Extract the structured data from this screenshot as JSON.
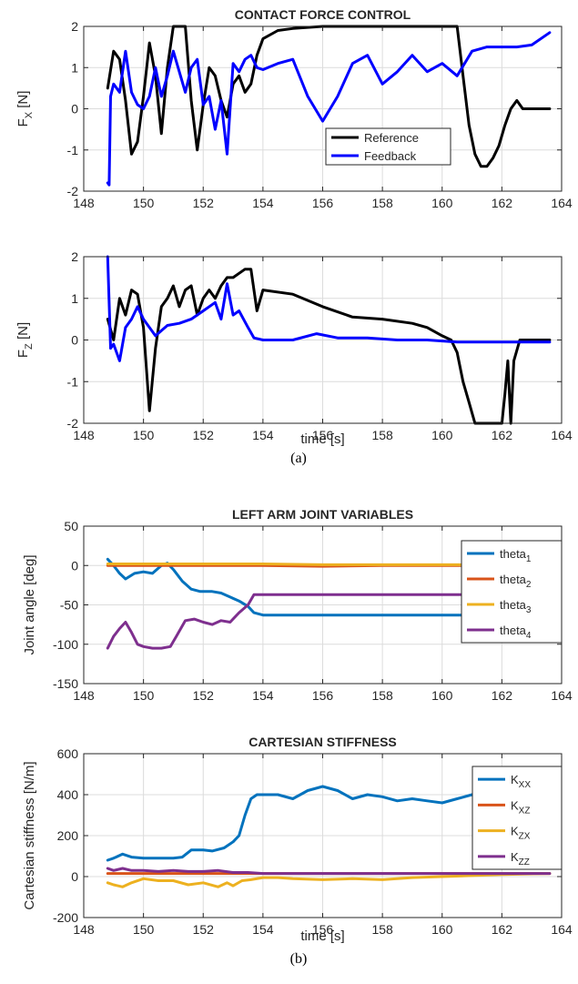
{
  "captions": {
    "a": "(a)",
    "b": "(b)"
  },
  "chart_data": [
    {
      "type": "line",
      "title": "CONTACT FORCE CONTROL",
      "ylabel": "F",
      "ylabel_sub": "X",
      "ylabel_unit": " [N]",
      "xlabel": "",
      "xlim": [
        148,
        164
      ],
      "ylim": [
        -2,
        2
      ],
      "xticks": [
        148,
        150,
        152,
        154,
        156,
        158,
        160,
        162,
        164
      ],
      "yticks": [
        -2,
        -1,
        0,
        1,
        2
      ],
      "grid": true,
      "legend_position": "bottom-right",
      "series": [
        {
          "name": "Reference",
          "color": "#000000",
          "x": [
            148.8,
            149.0,
            149.2,
            149.4,
            149.6,
            149.8,
            150.0,
            150.2,
            150.4,
            150.6,
            150.8,
            151.0,
            151.2,
            151.4,
            151.6,
            151.8,
            152.0,
            152.2,
            152.4,
            152.6,
            152.8,
            153.0,
            153.2,
            153.4,
            153.6,
            153.8,
            154.0,
            154.5,
            155.0,
            156.0,
            157.0,
            158.0,
            159.0,
            160.0,
            160.5,
            160.7,
            160.9,
            161.1,
            161.3,
            161.5,
            161.7,
            161.9,
            162.1,
            162.3,
            162.5,
            162.7,
            162.9,
            163.2,
            163.6
          ],
          "y": [
            0.5,
            1.4,
            1.2,
            0.2,
            -1.1,
            -0.8,
            0.3,
            1.6,
            0.8,
            -0.6,
            1.0,
            2.0,
            2.0,
            2.0,
            0.2,
            -1.0,
            0.1,
            1.0,
            0.8,
            0.2,
            -0.2,
            0.6,
            0.8,
            0.4,
            0.6,
            1.3,
            1.7,
            1.9,
            1.95,
            2.0,
            2.0,
            2.0,
            2.0,
            2.0,
            2.0,
            0.8,
            -0.4,
            -1.1,
            -1.4,
            -1.4,
            -1.2,
            -0.9,
            -0.4,
            0.0,
            0.2,
            0.0,
            0.0,
            0.0,
            0.0
          ]
        },
        {
          "name": "Feedback",
          "color": "#0000ff",
          "x": [
            148.8,
            148.85,
            148.9,
            149.0,
            149.2,
            149.4,
            149.6,
            149.8,
            150.0,
            150.2,
            150.4,
            150.6,
            150.8,
            151.0,
            151.2,
            151.4,
            151.6,
            151.8,
            152.0,
            152.2,
            152.4,
            152.6,
            152.8,
            153.0,
            153.2,
            153.4,
            153.6,
            153.8,
            154.0,
            154.5,
            155.0,
            155.5,
            156.0,
            156.5,
            157.0,
            157.5,
            158.0,
            158.5,
            159.0,
            159.5,
            160.0,
            160.5,
            161.0,
            161.5,
            162.0,
            162.5,
            163.0,
            163.6
          ],
          "y": [
            -1.8,
            -1.85,
            0.3,
            0.6,
            0.4,
            1.4,
            0.4,
            0.1,
            0.0,
            0.3,
            1.0,
            0.3,
            0.8,
            1.4,
            0.9,
            0.4,
            1.0,
            1.2,
            0.1,
            0.3,
            -0.5,
            0.2,
            -1.1,
            1.1,
            0.9,
            1.2,
            1.3,
            1.0,
            0.95,
            1.1,
            1.2,
            0.3,
            -0.3,
            0.3,
            1.1,
            1.3,
            0.6,
            0.9,
            1.3,
            0.9,
            1.1,
            0.8,
            1.4,
            1.5,
            1.5,
            1.5,
            1.55,
            1.85
          ]
        }
      ]
    },
    {
      "type": "line",
      "title": "",
      "ylabel": "F",
      "ylabel_sub": "Z",
      "ylabel_unit": " [N]",
      "xlabel": "time [s]",
      "xlim": [
        148,
        164
      ],
      "ylim": [
        -2,
        2
      ],
      "xticks": [
        148,
        150,
        152,
        154,
        156,
        158,
        160,
        162,
        164
      ],
      "yticks": [
        -2,
        -1,
        0,
        1,
        2
      ],
      "grid": true,
      "series": [
        {
          "name": "Reference",
          "color": "#000000",
          "x": [
            148.8,
            149.0,
            149.2,
            149.4,
            149.6,
            149.8,
            150.0,
            150.2,
            150.4,
            150.6,
            150.8,
            151.0,
            151.2,
            151.4,
            151.6,
            151.8,
            152.0,
            152.2,
            152.4,
            152.6,
            152.8,
            153.0,
            153.2,
            153.4,
            153.6,
            153.8,
            154.0,
            155.0,
            156.0,
            157.0,
            158.0,
            159.0,
            159.5,
            160.0,
            160.3,
            160.5,
            160.7,
            160.9,
            161.1,
            161.5,
            162.0,
            162.1,
            162.2,
            162.3,
            162.4,
            162.6,
            163.0,
            163.6
          ],
          "y": [
            0.5,
            0.0,
            1.0,
            0.6,
            1.2,
            1.1,
            0.3,
            -1.7,
            -0.2,
            0.8,
            1.0,
            1.3,
            0.8,
            1.2,
            1.3,
            0.6,
            1.0,
            1.2,
            1.0,
            1.3,
            1.5,
            1.5,
            1.6,
            1.7,
            1.7,
            0.7,
            1.2,
            1.1,
            0.8,
            0.55,
            0.5,
            0.4,
            0.3,
            0.1,
            0.0,
            -0.3,
            -1.0,
            -1.5,
            -2.0,
            -2.0,
            -2.0,
            -1.3,
            -0.5,
            -2.0,
            -0.5,
            0.0,
            0.0,
            0.0
          ]
        },
        {
          "name": "Feedback",
          "color": "#0000ff",
          "x": [
            148.8,
            148.9,
            149.0,
            149.2,
            149.4,
            149.6,
            149.8,
            150.0,
            150.4,
            150.8,
            151.2,
            151.6,
            152.0,
            152.4,
            152.6,
            152.8,
            153.0,
            153.2,
            153.5,
            153.7,
            154.0,
            155.0,
            155.8,
            156.5,
            157.5,
            158.5,
            159.5,
            160.5,
            161.5,
            162.5,
            163.6
          ],
          "y": [
            2.0,
            -0.2,
            -0.1,
            -0.5,
            0.3,
            0.5,
            0.8,
            0.5,
            0.1,
            0.35,
            0.4,
            0.5,
            0.7,
            0.9,
            0.5,
            1.35,
            0.6,
            0.7,
            0.3,
            0.05,
            0.0,
            0.0,
            0.15,
            0.05,
            0.05,
            0.0,
            0.0,
            -0.05,
            -0.05,
            -0.05,
            -0.05
          ]
        }
      ]
    },
    {
      "type": "line",
      "title": "LEFT ARM JOINT VARIABLES",
      "ylabel": "Joint angle [deg]",
      "xlabel": "",
      "xlim": [
        148,
        164
      ],
      "ylim": [
        -150,
        50
      ],
      "xticks": [
        148,
        150,
        152,
        154,
        156,
        158,
        160,
        162,
        164
      ],
      "yticks": [
        -150,
        -100,
        -50,
        0,
        50
      ],
      "grid": true,
      "legend_position": "top-right",
      "series": [
        {
          "name": "theta",
          "sub": "1",
          "color": "#0072bd",
          "x": [
            148.8,
            149.0,
            149.2,
            149.4,
            149.7,
            150.0,
            150.3,
            150.6,
            150.8,
            151.0,
            151.3,
            151.6,
            151.9,
            152.3,
            152.6,
            152.9,
            153.2,
            153.5,
            153.7,
            154.0,
            155.0,
            157.0,
            160.0,
            163.6
          ],
          "y": [
            8,
            0,
            -10,
            -17,
            -10,
            -8,
            -10,
            0,
            3,
            -5,
            -20,
            -30,
            -33,
            -33,
            -35,
            -40,
            -45,
            -52,
            -60,
            -63,
            -63,
            -63,
            -63,
            -63
          ]
        },
        {
          "name": "theta",
          "sub": "2",
          "color": "#d95319",
          "x": [
            148.8,
            150,
            152,
            154,
            156,
            158,
            160,
            162,
            163.6
          ],
          "y": [
            0,
            0,
            0,
            0,
            -1,
            0,
            0,
            0,
            0
          ]
        },
        {
          "name": "theta",
          "sub": "3",
          "color": "#edb120",
          "x": [
            148.8,
            150,
            152,
            154,
            156,
            158,
            160,
            162,
            163.6
          ],
          "y": [
            2,
            2,
            2,
            2,
            1,
            1,
            1,
            1,
            1
          ]
        },
        {
          "name": "theta",
          "sub": "4",
          "color": "#7e2f8e",
          "x": [
            148.8,
            149.0,
            149.2,
            149.4,
            149.6,
            149.8,
            150.0,
            150.3,
            150.6,
            150.9,
            151.1,
            151.4,
            151.7,
            152.0,
            152.3,
            152.6,
            152.9,
            153.2,
            153.5,
            153.7,
            154.0,
            155.0,
            157.0,
            160.0,
            163.6
          ],
          "y": [
            -105,
            -90,
            -80,
            -72,
            -85,
            -100,
            -103,
            -105,
            -105,
            -103,
            -90,
            -70,
            -68,
            -72,
            -75,
            -70,
            -72,
            -60,
            -50,
            -37,
            -37,
            -37,
            -37,
            -37,
            -37
          ]
        }
      ]
    },
    {
      "type": "line",
      "title": "CARTESIAN STIFFNESS",
      "ylabel": "Cartesian stiffness [N/m]",
      "xlabel": "time [s]",
      "xlim": [
        148,
        164
      ],
      "ylim": [
        -200,
        600
      ],
      "xticks": [
        148,
        150,
        152,
        154,
        156,
        158,
        160,
        162,
        164
      ],
      "yticks": [
        -200,
        0,
        200,
        400,
        600
      ],
      "grid": true,
      "legend_position": "top-right",
      "series": [
        {
          "name": "K",
          "sub": "XX",
          "color": "#0072bd",
          "x": [
            148.8,
            149.0,
            149.3,
            149.6,
            150.0,
            150.5,
            151.0,
            151.3,
            151.6,
            152.0,
            152.3,
            152.7,
            153.0,
            153.2,
            153.4,
            153.6,
            153.8,
            154.0,
            154.5,
            155.0,
            155.5,
            156.0,
            156.5,
            157.0,
            157.5,
            158.0,
            158.5,
            159.0,
            159.5,
            160.0,
            160.5,
            161.0,
            161.5,
            162.0,
            162.5,
            163.0,
            163.6
          ],
          "y": [
            80,
            90,
            110,
            95,
            90,
            90,
            90,
            95,
            130,
            130,
            125,
            140,
            170,
            200,
            300,
            380,
            400,
            400,
            400,
            380,
            420,
            440,
            420,
            380,
            400,
            390,
            370,
            380,
            370,
            360,
            380,
            400,
            380,
            350,
            380,
            360,
            320
          ]
        },
        {
          "name": "K",
          "sub": "XZ",
          "color": "#d95319",
          "x": [
            148.8,
            150,
            152,
            154,
            156,
            158,
            160,
            162,
            163.6
          ],
          "y": [
            15,
            15,
            15,
            15,
            15,
            15,
            15,
            15,
            15
          ]
        },
        {
          "name": "K",
          "sub": "ZX",
          "color": "#edb120",
          "x": [
            148.8,
            149.0,
            149.3,
            149.6,
            150.0,
            150.5,
            151.0,
            151.5,
            152.0,
            152.5,
            152.8,
            153.0,
            153.3,
            153.6,
            154.0,
            154.5,
            155.0,
            156.0,
            157.0,
            158.0,
            159.0,
            160.0,
            161.0,
            162.0,
            163.6
          ],
          "y": [
            -30,
            -40,
            -50,
            -30,
            -10,
            -20,
            -20,
            -40,
            -30,
            -50,
            -30,
            -45,
            -20,
            -15,
            -5,
            -5,
            -10,
            -15,
            -10,
            -15,
            -5,
            0,
            5,
            10,
            15
          ]
        },
        {
          "name": "K",
          "sub": "ZZ",
          "color": "#7e2f8e",
          "x": [
            148.8,
            149.0,
            149.3,
            149.6,
            150.0,
            150.5,
            151.0,
            151.5,
            152.0,
            152.5,
            153.0,
            153.5,
            154.0,
            155.0,
            156.0,
            158.0,
            160.0,
            162.0,
            163.6
          ],
          "y": [
            40,
            30,
            40,
            30,
            30,
            25,
            30,
            25,
            25,
            30,
            20,
            20,
            15,
            15,
            15,
            15,
            15,
            15,
            15
          ]
        }
      ]
    }
  ]
}
